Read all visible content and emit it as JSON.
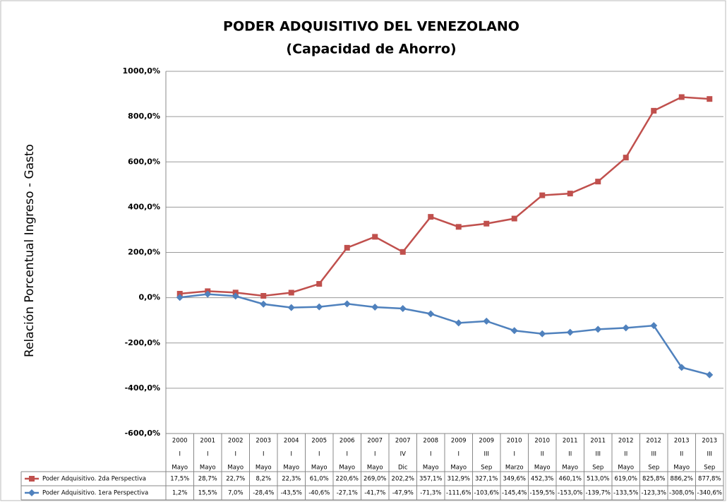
{
  "chart_data": {
    "type": "line",
    "title": "PODER ADQUISITIVO DEL VENEZOLANO",
    "subtitle": "(Capacidad de Ahorro)",
    "y_label": "Relación Porcentual Ingreso - Gasto",
    "categories": [
      [
        "2000",
        "I",
        "Mayo"
      ],
      [
        "2001",
        "I",
        "Mayo"
      ],
      [
        "2002",
        "I",
        "Mayo"
      ],
      [
        "2003",
        "I",
        "Mayo"
      ],
      [
        "2004",
        "I",
        "Mayo"
      ],
      [
        "2005",
        "I",
        "Mayo"
      ],
      [
        "2006",
        "I",
        "Mayo"
      ],
      [
        "2007",
        "I",
        "Mayo"
      ],
      [
        "2007",
        "IV",
        "Dic"
      ],
      [
        "2008",
        "I",
        "Mayo"
      ],
      [
        "2009",
        "I",
        "Mayo"
      ],
      [
        "2009",
        "III",
        "Sep"
      ],
      [
        "2010",
        "I",
        "Marzo"
      ],
      [
        "2010",
        "II",
        "Mayo"
      ],
      [
        "2011",
        "II",
        "Mayo"
      ],
      [
        "2011",
        "III",
        "Sep"
      ],
      [
        "2012",
        "II",
        "Mayo"
      ],
      [
        "2012",
        "III",
        "Sep"
      ],
      [
        "2013",
        "II",
        "Mayo"
      ],
      [
        "2013",
        "III",
        "Sep"
      ]
    ],
    "series": [
      {
        "name": "Poder Adquisitivo. 2da Perspectiva",
        "color": "#c0504d",
        "marker": "square",
        "values": [
          17.5,
          28.7,
          22.7,
          8.2,
          22.3,
          61.0,
          220.6,
          269.0,
          202.2,
          357.1,
          312.9,
          327.1,
          349.6,
          452.3,
          460.1,
          513.0,
          619.0,
          825.8,
          886.2,
          877.8
        ],
        "value_labels": [
          "17,5%",
          "28,7%",
          "22,7%",
          "8,2%",
          "22,3%",
          "61,0%",
          "220,6%",
          "269,0%",
          "202,2%",
          "357,1%",
          "312,9%",
          "327,1%",
          "349,6%",
          "452,3%",
          "460,1%",
          "513,0%",
          "619,0%",
          "825,8%",
          "886,2%",
          "877,8%"
        ]
      },
      {
        "name": "Poder Adquisitivo. 1era Perspectiva",
        "color": "#4f81bd",
        "marker": "diamond",
        "values": [
          1.2,
          15.5,
          7.0,
          -28.4,
          -43.5,
          -40.6,
          -27.1,
          -41.7,
          -47.9,
          -71.3,
          -111.6,
          -103.6,
          -145.4,
          -159.5,
          -153.0,
          -139.7,
          -133.5,
          -123.3,
          -308.0,
          -340.6
        ],
        "value_labels": [
          "1,2%",
          "15,5%",
          "7,0%",
          "-28,4%",
          "-43,5%",
          "-40,6%",
          "-27,1%",
          "-41,7%",
          "-47,9%",
          "-71,3%",
          "-111,6%",
          "-103,6%",
          "-145,4%",
          "-159,5%",
          "-153,0%",
          "-139,7%",
          "-133,5%",
          "-123,3%",
          "-308,0%",
          "-340,6%"
        ]
      }
    ],
    "ylim": [
      -600,
      1000
    ],
    "yticks": [
      {
        "value": -600,
        "label": "-600,0%"
      },
      {
        "value": -400,
        "label": "-400,0%"
      },
      {
        "value": -200,
        "label": "-200,0%"
      },
      {
        "value": 0,
        "label": "0,0%"
      },
      {
        "value": 200,
        "label": "200,0%"
      },
      {
        "value": 400,
        "label": "400,0%"
      },
      {
        "value": 600,
        "label": "600,0%"
      },
      {
        "value": 800,
        "label": "800,0%"
      },
      {
        "value": 1000,
        "label": "1000,0%"
      }
    ],
    "grid": true
  }
}
